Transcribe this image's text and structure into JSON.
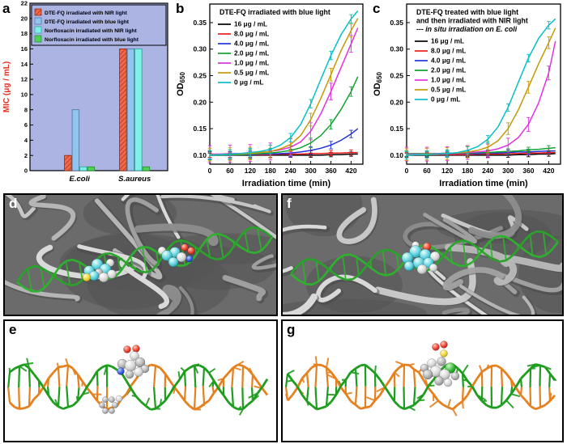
{
  "figure": {
    "panel_labels": {
      "a": "a",
      "b": "b",
      "c": "c",
      "d": "d",
      "e": "e",
      "f": "f",
      "g": "g"
    }
  },
  "chart_data": [
    {
      "id": "a",
      "type": "bar",
      "ylabel": "MIC (μg / mL)",
      "ylabel_color": "#e43225",
      "ylim": [
        0,
        22
      ],
      "ytick_step": 2,
      "plot_bg": "#abb4e2",
      "categories": [
        "E.coli",
        "S.aureus"
      ],
      "series": [
        {
          "name": "DTE-FQ irradiated with NIR light",
          "color": "#f0694a",
          "hatch": true,
          "hatch_color": "#bf3a1e",
          "edge": "#8a2a12",
          "values": [
            2,
            16
          ]
        },
        {
          "name": "DTE-FQ irradiated with blue light",
          "color": "#92c5ee",
          "edge": "#46749f",
          "values": [
            8,
            16
          ]
        },
        {
          "name": "Norfloxacin irradiated with NIR light",
          "color": "#7ef0e6",
          "edge": "#2aa39b",
          "values": [
            0.5,
            16
          ]
        },
        {
          "name": "Norfloxacin irradiated with blue light",
          "color": "#52d158",
          "edge": "#1d8f2e",
          "values": [
            0.5,
            0.5
          ]
        }
      ]
    },
    {
      "id": "b",
      "type": "line",
      "title_lines": [
        {
          "text": "DTE-FQ irradiated with blue light",
          "italic": false
        }
      ],
      "xlabel": "Irradiation time (min)",
      "ylabel": "OD",
      "ylabel_sub": "650",
      "xlim": [
        0,
        455
      ],
      "xticks": [
        0,
        60,
        120,
        180,
        240,
        300,
        360,
        420
      ],
      "ylim": [
        0.083,
        0.385
      ],
      "yticks": [
        0.1,
        0.15,
        0.2,
        0.25,
        0.3,
        0.35
      ],
      "x": [
        0,
        30,
        60,
        90,
        120,
        150,
        180,
        210,
        240,
        270,
        300,
        330,
        360,
        390,
        420,
        440
      ],
      "series": [
        {
          "name": "16 μg / mL",
          "color": "#000000",
          "err": 0.004,
          "values": [
            0.1,
            0.1,
            0.1,
            0.1,
            0.1,
            0.1,
            0.1,
            0.1,
            0.1,
            0.1,
            0.1,
            0.1,
            0.101,
            0.101,
            0.102,
            0.102
          ]
        },
        {
          "name": "8.0 μg / mL",
          "color": "#ee1c1c",
          "err": 0.005,
          "values": [
            0.101,
            0.101,
            0.101,
            0.101,
            0.101,
            0.101,
            0.101,
            0.102,
            0.102,
            0.102,
            0.103,
            0.103,
            0.104,
            0.104,
            0.105,
            0.105
          ]
        },
        {
          "name": "4.0 μg / mL",
          "color": "#2233dd",
          "err": 0.007,
          "values": [
            0.1,
            0.1,
            0.1,
            0.101,
            0.101,
            0.102,
            0.102,
            0.103,
            0.104,
            0.106,
            0.109,
            0.113,
            0.119,
            0.128,
            0.14,
            0.15
          ]
        },
        {
          "name": "2.0 μg / mL",
          "color": "#0fa32f",
          "err": 0.009,
          "values": [
            0.1,
            0.1,
            0.101,
            0.101,
            0.102,
            0.103,
            0.104,
            0.106,
            0.109,
            0.114,
            0.123,
            0.137,
            0.158,
            0.186,
            0.22,
            0.248
          ]
        },
        {
          "name": "1.0 μg / mL",
          "color": "#e032e0",
          "err": 0.016,
          "values": [
            0.102,
            0.102,
            0.103,
            0.103,
            0.104,
            0.105,
            0.107,
            0.11,
            0.115,
            0.125,
            0.145,
            0.178,
            0.22,
            0.265,
            0.31,
            0.34
          ]
        },
        {
          "name": "0.5 μg / mL",
          "color": "#c49a06",
          "err": 0.012,
          "values": [
            0.101,
            0.101,
            0.102,
            0.102,
            0.103,
            0.105,
            0.107,
            0.112,
            0.12,
            0.137,
            0.167,
            0.207,
            0.252,
            0.297,
            0.335,
            0.358
          ]
        },
        {
          "name": "0 μg / mL",
          "color": "#08bfc7",
          "err": 0.008,
          "values": [
            0.1,
            0.101,
            0.102,
            0.103,
            0.105,
            0.107,
            0.111,
            0.119,
            0.133,
            0.158,
            0.197,
            0.243,
            0.288,
            0.327,
            0.357,
            0.372
          ]
        }
      ]
    },
    {
      "id": "c",
      "type": "line",
      "title_lines": [
        {
          "text": "DTE-FQ treated with blue light",
          "italic": false
        },
        {
          "text": "and then irradiated with NIR light",
          "italic": false
        },
        {
          "text": "--- in situ irradiation on E. coli",
          "italic": true
        }
      ],
      "xlabel": "Irradiation time (min)",
      "ylabel": "OD",
      "ylabel_sub": "650",
      "xlim": [
        0,
        455
      ],
      "xticks": [
        0,
        60,
        120,
        180,
        240,
        300,
        360,
        420
      ],
      "ylim": [
        0.083,
        0.385
      ],
      "yticks": [
        0.1,
        0.15,
        0.2,
        0.25,
        0.3,
        0.35
      ],
      "x": [
        0,
        30,
        60,
        90,
        120,
        150,
        180,
        210,
        240,
        270,
        300,
        330,
        360,
        390,
        420,
        440
      ],
      "series": [
        {
          "name": "16 μg / mL",
          "color": "#000000",
          "err": 0.004,
          "values": [
            0.1,
            0.1,
            0.1,
            0.1,
            0.1,
            0.1,
            0.1,
            0.1,
            0.1,
            0.1,
            0.1,
            0.101,
            0.101,
            0.102,
            0.102,
            0.103
          ]
        },
        {
          "name": "8.0 μg / mL",
          "color": "#ee1c1c",
          "err": 0.004,
          "values": [
            0.101,
            0.101,
            0.101,
            0.101,
            0.101,
            0.101,
            0.101,
            0.102,
            0.102,
            0.102,
            0.103,
            0.103,
            0.104,
            0.104,
            0.105,
            0.105
          ]
        },
        {
          "name": "4.0 μg / mL",
          "color": "#2233dd",
          "err": 0.005,
          "values": [
            0.102,
            0.102,
            0.102,
            0.102,
            0.102,
            0.103,
            0.103,
            0.103,
            0.104,
            0.104,
            0.105,
            0.106,
            0.106,
            0.107,
            0.108,
            0.108
          ]
        },
        {
          "name": "2.0 μg / mL",
          "color": "#0fa32f",
          "err": 0.005,
          "values": [
            0.103,
            0.103,
            0.103,
            0.103,
            0.104,
            0.104,
            0.104,
            0.105,
            0.105,
            0.106,
            0.107,
            0.108,
            0.11,
            0.111,
            0.113,
            0.114
          ]
        },
        {
          "name": "1.0 μg / mL",
          "color": "#e032e0",
          "err": 0.013,
          "values": [
            0.102,
            0.102,
            0.102,
            0.103,
            0.103,
            0.104,
            0.105,
            0.106,
            0.108,
            0.112,
            0.119,
            0.133,
            0.158,
            0.198,
            0.255,
            0.315
          ]
        },
        {
          "name": "0.5 μg / mL",
          "color": "#c49a06",
          "err": 0.011,
          "values": [
            0.101,
            0.101,
            0.102,
            0.102,
            0.103,
            0.104,
            0.106,
            0.109,
            0.115,
            0.127,
            0.15,
            0.185,
            0.228,
            0.272,
            0.312,
            0.34
          ]
        },
        {
          "name": "0 μg / mL",
          "color": "#08bfc7",
          "err": 0.007,
          "values": [
            0.1,
            0.101,
            0.101,
            0.102,
            0.103,
            0.105,
            0.109,
            0.116,
            0.13,
            0.153,
            0.19,
            0.237,
            0.283,
            0.32,
            0.345,
            0.357
          ]
        }
      ]
    }
  ]
}
